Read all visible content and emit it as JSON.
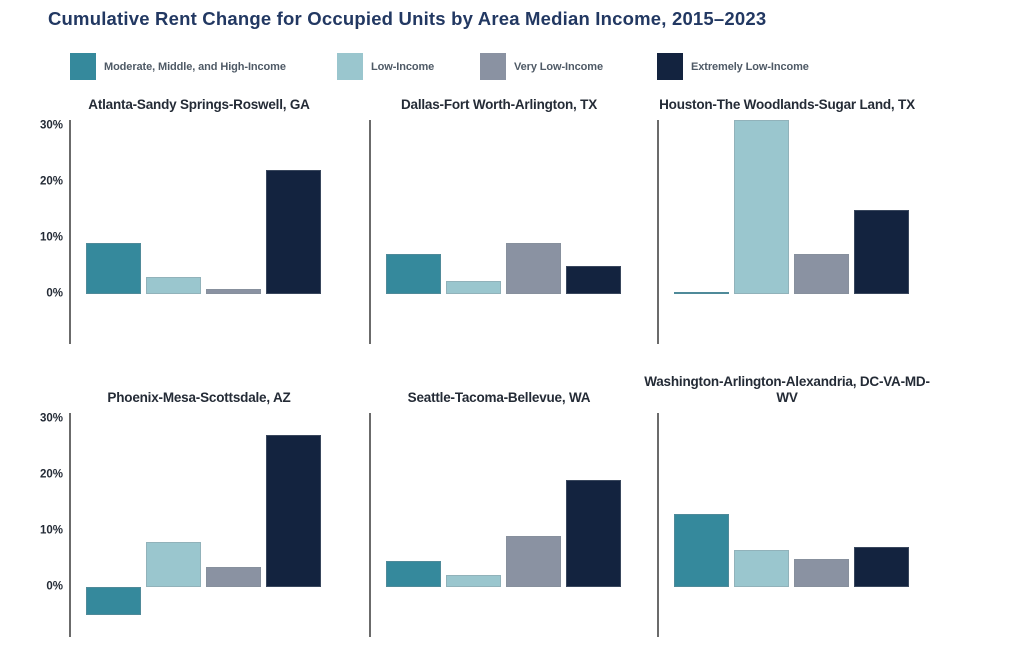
{
  "page_title": "Cumulative Rent Change for Occupied Units by Area Median Income, 2015–2023",
  "colors": {
    "series": [
      "#35899c",
      "#9ac6ce",
      "#8a92a2",
      "#13233f"
    ],
    "main_title": "#223862",
    "chart_title": "#242b36",
    "legend_text": "#4f5a66",
    "axis_line": "#6b6b6b"
  },
  "legend": {
    "items": [
      {
        "label": "Moderate, Middle, and High-Income",
        "color": "#35899c"
      },
      {
        "label": "Low-Income",
        "color": "#9ac6ce"
      },
      {
        "label": "Very Low-Income",
        "color": "#8a92a2"
      },
      {
        "label": "Extremely Low-Income",
        "color": "#13233f"
      }
    ]
  },
  "chart_data": {
    "type": "bar",
    "title": "Cumulative Rent Change for Occupied Units by Area Median Income, 2015–2023",
    "categories": [
      "Moderate, Middle, and High-Income",
      "Low-Income",
      "Very Low-Income",
      "Extremely Low-Income"
    ],
    "series_colors": [
      "#35899c",
      "#9ac6ce",
      "#8a92a2",
      "#13233f"
    ],
    "xlabel": "",
    "ylabel": "",
    "unit": "percent",
    "ylim": [
      -9,
      31
    ],
    "grid": false,
    "legend_position": "top",
    "yticks": [
      {
        "label": "30%",
        "value": 30
      },
      {
        "label": "20%",
        "value": 20
      },
      {
        "label": "10%",
        "value": 10
      },
      {
        "label": "0%",
        "value": 0
      }
    ],
    "charts": [
      {
        "title": "Atlanta-Sandy Springs-Roswell, GA",
        "values": [
          9,
          3,
          0.9,
          22
        ],
        "y_tick_labels_visible": true
      },
      {
        "title": "Dallas-Fort Worth-Arlington, TX",
        "values": [
          7,
          2.3,
          9,
          5
        ],
        "y_tick_labels_visible": false
      },
      {
        "title": "Houston-The Woodlands-Sugar Land, TX",
        "values": [
          0.3,
          31,
          7,
          15
        ],
        "y_tick_labels_visible": false
      },
      {
        "title": "Phoenix-Mesa-Scottsdale, AZ",
        "values": [
          -5,
          8,
          3.5,
          27
        ],
        "y_tick_labels_visible": true
      },
      {
        "title": "Seattle-Tacoma-Bellevue, WA",
        "values": [
          4.5,
          2,
          9,
          19
        ],
        "y_tick_labels_visible": false
      },
      {
        "title": "Washington-Arlington-Alexandria, DC-VA-MD-WV",
        "values": [
          13,
          6.5,
          5,
          7
        ],
        "y_tick_labels_visible": false
      }
    ]
  }
}
